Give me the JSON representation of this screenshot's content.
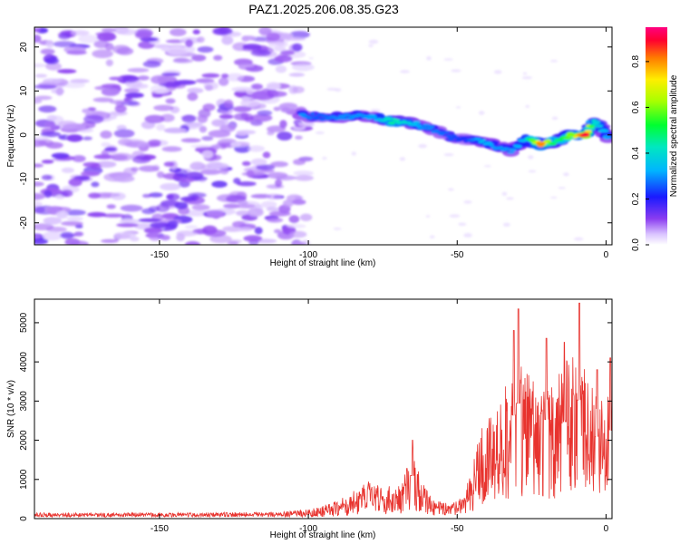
{
  "title": "PAZ1.2025.206.08.35.G23",
  "chart_data": [
    {
      "type": "heatmap",
      "xlabel": "Height of straight line (km)",
      "ylabel": "Frequency (Hz)",
      "xlim": [
        -192,
        2
      ],
      "ylim": [
        -25,
        24.5
      ],
      "xticks": [
        -150,
        -100,
        -50,
        0
      ],
      "yticks": [
        -20,
        -10,
        0,
        10,
        20
      ],
      "colorbar": {
        "label": "Normalized spectral amplitude",
        "range": [
          0,
          0.95
        ],
        "ticks": [
          0.0,
          0.2,
          0.4,
          0.6,
          0.8
        ]
      },
      "noise_region": {
        "x_range": [
          -192,
          -100
        ],
        "y_range": [
          -25,
          24
        ]
      },
      "signal_ridge": [
        {
          "x": -102,
          "freq": 4.5,
          "amp": 0.3
        },
        {
          "x": -97,
          "freq": 4.0,
          "amp": 0.25
        },
        {
          "x": -92,
          "freq": 4.0,
          "amp": 0.28
        },
        {
          "x": -87,
          "freq": 4.2,
          "amp": 0.3
        },
        {
          "x": -82,
          "freq": 4.5,
          "amp": 0.3
        },
        {
          "x": -77,
          "freq": 4.0,
          "amp": 0.32
        },
        {
          "x": -72,
          "freq": 3.0,
          "amp": 0.45
        },
        {
          "x": -67,
          "freq": 3.0,
          "amp": 0.4
        },
        {
          "x": -62,
          "freq": 2.0,
          "amp": 0.3
        },
        {
          "x": -57,
          "freq": 1.0,
          "amp": 0.28
        },
        {
          "x": -52,
          "freq": -0.5,
          "amp": 0.25
        },
        {
          "x": -47,
          "freq": -1.0,
          "amp": 0.22
        },
        {
          "x": -42,
          "freq": -1.5,
          "amp": 0.35
        },
        {
          "x": -37,
          "freq": -2.5,
          "amp": 0.3
        },
        {
          "x": -32,
          "freq": -3.5,
          "amp": 0.3
        },
        {
          "x": -27,
          "freq": -1.0,
          "amp": 0.35
        },
        {
          "x": -22,
          "freq": -2.0,
          "amp": 0.8
        },
        {
          "x": -17,
          "freq": -1.5,
          "amp": 0.45
        },
        {
          "x": -12,
          "freq": 0.0,
          "amp": 0.6
        },
        {
          "x": -7,
          "freq": 0.0,
          "amp": 0.9
        },
        {
          "x": -4,
          "freq": 3.0,
          "amp": 0.4
        },
        {
          "x": -1,
          "freq": 1.0,
          "amp": 0.35
        },
        {
          "x": 1,
          "freq": -1.0,
          "amp": 0.3
        }
      ]
    },
    {
      "type": "line",
      "xlabel": "Height of straight line (km)",
      "ylabel": "SNR (10 * v/v)",
      "xlim": [
        -192,
        2
      ],
      "ylim": [
        0,
        5600
      ],
      "xticks": [
        -150,
        -100,
        -50,
        0
      ],
      "yticks": [
        0,
        1000,
        2000,
        3000,
        4000,
        5000
      ],
      "series": [
        {
          "color": "#e8332e",
          "envelope": [
            {
              "x": -192,
              "y": 100
            },
            {
              "x": -150,
              "y": 100
            },
            {
              "x": -110,
              "y": 120
            },
            {
              "x": -100,
              "y": 180
            },
            {
              "x": -90,
              "y": 400
            },
            {
              "x": -85,
              "y": 600
            },
            {
              "x": -80,
              "y": 850
            },
            {
              "x": -75,
              "y": 750
            },
            {
              "x": -70,
              "y": 700
            },
            {
              "x": -65,
              "y": 1500
            },
            {
              "x": -62,
              "y": 900
            },
            {
              "x": -58,
              "y": 400
            },
            {
              "x": -52,
              "y": 350
            },
            {
              "x": -48,
              "y": 500
            },
            {
              "x": -45,
              "y": 1100
            },
            {
              "x": -42,
              "y": 2100
            },
            {
              "x": -38,
              "y": 2500
            },
            {
              "x": -34,
              "y": 3000
            },
            {
              "x": -30,
              "y": 3500
            },
            {
              "x": -26,
              "y": 3300
            },
            {
              "x": -22,
              "y": 3100
            },
            {
              "x": -18,
              "y": 3200
            },
            {
              "x": -14,
              "y": 3600
            },
            {
              "x": -10,
              "y": 3800
            },
            {
              "x": -6,
              "y": 3100
            },
            {
              "x": -3,
              "y": 2700
            },
            {
              "x": 0,
              "y": 2800
            },
            {
              "x": 2,
              "y": 3000
            }
          ],
          "peaks": [
            {
              "x": -29.5,
              "y": 5350
            },
            {
              "x": -31,
              "y": 4800
            },
            {
              "x": -9,
              "y": 5500
            },
            {
              "x": -65,
              "y": 2000
            },
            {
              "x": -20,
              "y": 4600
            },
            {
              "x": -14,
              "y": 4500
            },
            {
              "x": -3,
              "y": 3800
            },
            {
              "x": 1.5,
              "y": 4100
            }
          ]
        }
      ]
    }
  ]
}
